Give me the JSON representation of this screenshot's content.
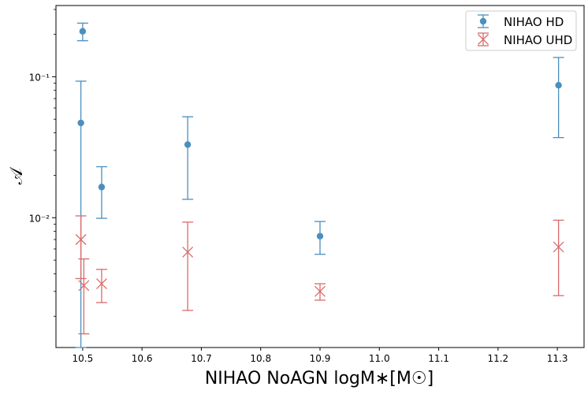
{
  "chart_data": {
    "type": "scatter",
    "title": "",
    "xlabel": "NIHAO NoAGN logM$*$[M$_\\odot$]",
    "ylabel": "$\\mathcal{A}$",
    "xlabel_text": "NIHAO NoAGN logM∗[M☉]",
    "ylabel_text": "𝒜",
    "xlim": [
      10.455,
      11.345
    ],
    "ylim": [
      0.0012,
      0.32
    ],
    "yscale": "log",
    "grid": false,
    "legend_position": "top-right",
    "x_ticks": [
      10.5,
      10.6,
      10.7,
      10.8,
      10.9,
      11.0,
      11.1,
      11.2,
      11.3
    ],
    "x_tick_labels": [
      "10.5",
      "10.6",
      "10.7",
      "10.8",
      "10.9",
      "11.0",
      "11.1",
      "11.2",
      "11.3"
    ],
    "y_major_ticks": [
      0.01,
      0.1
    ],
    "y_tick_labels": [
      "10⁻²",
      "10⁻¹"
    ],
    "series": [
      {
        "name": "NIHAO HD",
        "color": "#4C8FBF",
        "marker": "circle",
        "points": [
          {
            "x": 10.5,
            "y": 0.21,
            "ylow": 0.18,
            "yhigh": 0.24
          },
          {
            "x": 10.497,
            "y": 0.047,
            "ylow": 0.0012,
            "yhigh": 0.093
          },
          {
            "x": 10.532,
            "y": 0.0165,
            "ylow": 0.0099,
            "yhigh": 0.023
          },
          {
            "x": 10.677,
            "y": 0.033,
            "ylow": 0.0135,
            "yhigh": 0.052
          },
          {
            "x": 10.9,
            "y": 0.0074,
            "ylow": 0.0055,
            "yhigh": 0.0094
          },
          {
            "x": 11.302,
            "y": 0.087,
            "ylow": 0.037,
            "yhigh": 0.137
          }
        ]
      },
      {
        "name": "NIHAO UHD",
        "color": "#D96B6B",
        "marker": "x",
        "points": [
          {
            "x": 10.497,
            "y": 0.007,
            "ylow": 0.0037,
            "yhigh": 0.0103
          },
          {
            "x": 10.502,
            "y": 0.0033,
            "ylow": 0.0015,
            "yhigh": 0.0051
          },
          {
            "x": 10.532,
            "y": 0.0034,
            "ylow": 0.0025,
            "yhigh": 0.0043
          },
          {
            "x": 10.677,
            "y": 0.0057,
            "ylow": 0.0022,
            "yhigh": 0.0093
          },
          {
            "x": 10.9,
            "y": 0.003,
            "ylow": 0.0026,
            "yhigh": 0.0034
          },
          {
            "x": 11.302,
            "y": 0.0062,
            "ylow": 0.0028,
            "yhigh": 0.0096
          }
        ]
      }
    ]
  }
}
